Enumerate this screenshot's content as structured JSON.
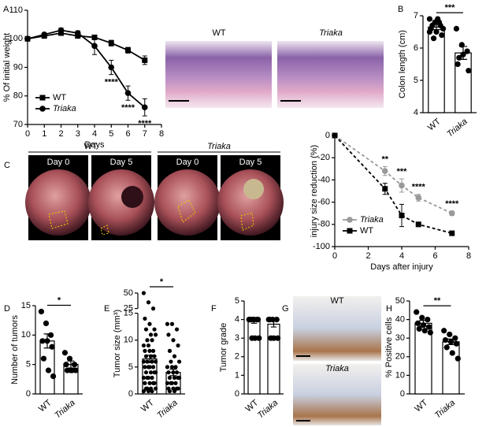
{
  "chart_data": [
    {
      "type": "line",
      "panel": "A",
      "ylabel": "% Of initial weight",
      "xlabel": "Days",
      "x": [
        0,
        1,
        2,
        3,
        4,
        5,
        6,
        7
      ],
      "xlim": [
        0,
        8
      ],
      "xticks": [
        0,
        1,
        2,
        3,
        4,
        5,
        6,
        7,
        8
      ],
      "ylim": [
        70,
        110
      ],
      "yticks": [
        70,
        80,
        90,
        100,
        110
      ],
      "legend": "lower left",
      "annotation_position": "below",
      "series": [
        {
          "name": "WT",
          "color": "#000000",
          "marker": "square",
          "font_style": "normal",
          "dash": false,
          "values": [
            100,
            101,
            102,
            101,
            100.5,
            98.5,
            96,
            92.5
          ],
          "errors": [
            0.3,
            0.5,
            0.5,
            0.5,
            0.8,
            1,
            1,
            1.5
          ]
        },
        {
          "name": "Triaka",
          "color": "#000000",
          "marker": "circle",
          "font_style": "italic",
          "dash": false,
          "values": [
            100,
            101.5,
            103,
            102,
            97.5,
            90,
            81,
            76
          ],
          "errors": [
            0.3,
            0.5,
            0.8,
            0.8,
            3,
            2.5,
            2.5,
            3
          ]
        }
      ],
      "annotations": [
        {
          "x": 5,
          "text": "****"
        },
        {
          "x": 6,
          "text": "****"
        },
        {
          "x": 7,
          "text": "****"
        }
      ]
    },
    {
      "type": "bar",
      "panel": "B",
      "ylabel": "Colon length (cm)",
      "categories": [
        "WT",
        "Triaka"
      ],
      "category_font_styles": [
        "normal",
        "italic"
      ],
      "values": [
        6.65,
        5.85
      ],
      "errors": [
        0.08,
        0.2
      ],
      "ylim": [
        4,
        7
      ],
      "yticks": [
        4,
        5,
        6,
        7
      ],
      "significance": "***",
      "points": [
        [
          6.9,
          6.8,
          6.7,
          6.6,
          6.5,
          6.4,
          6.7,
          6.9,
          6.6,
          6.3,
          6.8,
          6.5
        ],
        [
          6.6,
          6.1,
          5.9,
          5.5,
          5.8,
          5.3,
          5.7
        ]
      ]
    },
    {
      "type": "line",
      "panel": null,
      "ylabel": "injury size reduction (%)",
      "xlabel": "Days after injury",
      "x": [
        0,
        3,
        4,
        5,
        7
      ],
      "xlim": [
        0,
        8
      ],
      "xticks": [
        0,
        2,
        4,
        6,
        8
      ],
      "ylim": [
        -100,
        0
      ],
      "yticks": [
        -100,
        -80,
        -60,
        -40,
        -20,
        0
      ],
      "legend": "lower left",
      "annotation_position": "above",
      "series": [
        {
          "name": "Triaka",
          "color": "#999999",
          "marker": "circle",
          "font_style": "italic",
          "dash": true,
          "values": [
            0,
            -32,
            -45,
            -56,
            -70
          ],
          "errors": [
            0,
            4,
            6,
            3,
            2
          ]
        },
        {
          "name": "WT",
          "color": "#000000",
          "marker": "square",
          "font_style": "normal",
          "dash": true,
          "values": [
            0,
            -48,
            -72,
            -80,
            -88
          ],
          "errors": [
            0,
            5,
            10,
            2,
            1
          ]
        }
      ],
      "annotations": [
        {
          "x": 3,
          "text": "**"
        },
        {
          "x": 4,
          "text": "***"
        },
        {
          "x": 5,
          "text": "****"
        },
        {
          "x": 7,
          "text": "****"
        }
      ]
    },
    {
      "type": "bar",
      "panel": "D",
      "ylabel": "Number of tumors",
      "categories": [
        "WT",
        "Triaka"
      ],
      "category_font_styles": [
        "normal",
        "italic"
      ],
      "values": [
        9,
        5
      ],
      "errors": [
        1.2,
        0.6
      ],
      "ylim": [
        0,
        15
      ],
      "yticks": [
        0,
        5,
        10,
        15
      ],
      "significance": "*",
      "points": [
        [
          14,
          12,
          10,
          9,
          9,
          8,
          6,
          4,
          3
        ],
        [
          7,
          6,
          5,
          5,
          4,
          4,
          4,
          4
        ]
      ]
    },
    {
      "type": "bar",
      "panel": "E",
      "ylabel": "Tumor size (mm³)",
      "categories": [
        "WT",
        "Triaka"
      ],
      "category_font_styles": [
        "normal",
        "italic"
      ],
      "values": [
        6.5,
        4
      ],
      "errors": [
        0.7,
        0.6
      ],
      "ylim": [
        0,
        50
      ],
      "ybreak": [
        15,
        25
      ],
      "yticks": [
        0,
        5,
        10,
        15,
        25,
        50
      ],
      "significance": "*",
      "points": [
        [
          50,
          35,
          25,
          14,
          13,
          12,
          12,
          11,
          11,
          10,
          10,
          9,
          9,
          8,
          8,
          8,
          7,
          7,
          7,
          6,
          6,
          6,
          6,
          5,
          5,
          5,
          5,
          4,
          4,
          4,
          4,
          3,
          3,
          3,
          3,
          2,
          2,
          2,
          2,
          1,
          1,
          1,
          1,
          0.5,
          0.5,
          0.5
        ],
        [
          13,
          13,
          12,
          11,
          10,
          9,
          8,
          7,
          6,
          6,
          5,
          5,
          5,
          4,
          4,
          4,
          3,
          3,
          3,
          3,
          2,
          2,
          2,
          2,
          1,
          1,
          1,
          1,
          0.5,
          0.5
        ]
      ]
    },
    {
      "type": "bar",
      "panel": "F",
      "ylabel": "Tumor grade",
      "categories": [
        "WT",
        "Triaka"
      ],
      "category_font_styles": [
        "normal",
        "italic"
      ],
      "values": [
        3.9,
        3.75
      ],
      "errors": [
        0.1,
        0.15
      ],
      "ylim": [
        0,
        5
      ],
      "yticks": [
        0,
        1,
        2,
        3,
        4,
        5
      ],
      "points": [
        [
          4,
          4,
          4,
          4,
          4,
          4,
          4,
          3,
          3,
          3
        ],
        [
          4,
          4,
          4,
          4,
          3,
          3,
          3
        ]
      ]
    },
    {
      "type": "bar",
      "panel": "H",
      "ylabel": "% Positive cells",
      "categories": [
        "WT",
        "Triaka"
      ],
      "category_font_styles": [
        "normal",
        "italic"
      ],
      "values": [
        38,
        28
      ],
      "errors": [
        1.5,
        1.5
      ],
      "ylim": [
        0,
        50
      ],
      "yticks": [
        0,
        10,
        20,
        30,
        40,
        50
      ],
      "significance": "**",
      "points": [
        [
          44,
          41,
          40,
          38,
          37,
          36,
          35,
          34,
          33
        ],
        [
          34,
          32,
          30,
          29,
          28,
          27,
          25,
          22,
          19
        ]
      ]
    }
  ],
  "images": {
    "histology": {
      "labels": [
        "WT",
        "Triaka"
      ]
    },
    "endoscopy": {
      "panel": "C",
      "groups": [
        "WT",
        "Triaka"
      ],
      "days": [
        "Day 0",
        "Day 5",
        "Day 0",
        "Day 5"
      ]
    },
    "staining": {
      "panel": "G",
      "labels": [
        "WT",
        "Triaka"
      ]
    }
  }
}
